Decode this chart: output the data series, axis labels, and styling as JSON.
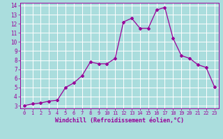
{
  "x": [
    0,
    1,
    2,
    3,
    4,
    5,
    6,
    7,
    8,
    9,
    10,
    11,
    12,
    13,
    14,
    15,
    16,
    17,
    18,
    19,
    20,
    21,
    22,
    23
  ],
  "y": [
    3.0,
    3.2,
    3.3,
    3.5,
    3.6,
    5.0,
    5.5,
    6.3,
    7.8,
    7.6,
    7.6,
    8.2,
    12.2,
    12.6,
    11.5,
    11.5,
    13.5,
    13.8,
    10.4,
    8.5,
    8.2,
    7.5,
    7.2,
    5.1
  ],
  "xlim": [
    -0.5,
    23.5
  ],
  "ylim": [
    2.7,
    14.3
  ],
  "yticks": [
    3,
    4,
    5,
    6,
    7,
    8,
    9,
    10,
    11,
    12,
    13,
    14
  ],
  "xticks": [
    0,
    1,
    2,
    3,
    4,
    5,
    6,
    7,
    8,
    9,
    10,
    11,
    12,
    13,
    14,
    15,
    16,
    17,
    18,
    19,
    20,
    21,
    22,
    23
  ],
  "xlabel": "Windchill (Refroidissement éolien,°C)",
  "line_color": "#990099",
  "marker": "D",
  "marker_size": 2,
  "bg_color": "#aadddd",
  "grid_color": "#ffffff",
  "tick_label_color": "#990099",
  "axis_color": "#990099",
  "xlabel_fontsize": 6.0,
  "tick_fontsize_x": 5.0,
  "tick_fontsize_y": 5.5
}
